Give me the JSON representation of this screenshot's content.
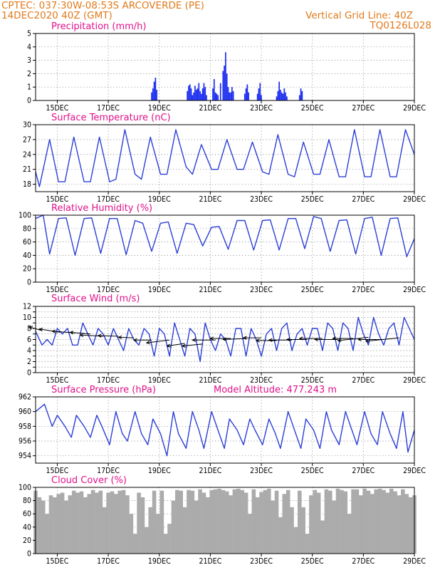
{
  "header": {
    "left_line1": "CPTEC:   037:30W-08:53S   ARCOVERDE (PE)",
    "left_line2": "14DEC2020 40Z (GMT)",
    "right_line1": "Vertical Grid Line: 40Z",
    "right_line2": "TQ0126L028"
  },
  "colors": {
    "series_line": "#2a3fd6",
    "precip_bar": "#1a2cf0",
    "cloud_bar": "#ababab",
    "title_text": "#e0128a",
    "header_text": "#e07a1c",
    "wind_arrow": "#000000"
  },
  "x_axis": {
    "tick_labels": [
      "15DEC",
      "17DEC",
      "19DEC",
      "21DEC",
      "23DEC",
      "25DEC",
      "27DEC",
      "29DEC"
    ],
    "tick_days": [
      15,
      17,
      19,
      21,
      23,
      25,
      27,
      29
    ],
    "day_range": [
      14.15,
      29.0
    ]
  },
  "chart_data": [
    {
      "id": "precip",
      "type": "bar",
      "title": "Precipitation (mm/h)",
      "ylim": [
        0,
        5
      ],
      "yticks": [
        0,
        1,
        2,
        3,
        4,
        5
      ],
      "grid": true,
      "x_days": [
        18.7,
        18.75,
        18.8,
        18.85,
        18.9,
        20.1,
        20.15,
        20.2,
        20.25,
        20.3,
        20.35,
        20.4,
        20.45,
        20.5,
        20.55,
        20.6,
        20.65,
        20.7,
        20.75,
        20.8,
        20.85,
        21.1,
        21.15,
        21.2,
        21.25,
        21.3,
        21.4,
        21.5,
        21.55,
        21.6,
        21.65,
        21.7,
        21.75,
        21.8,
        21.85,
        21.9,
        22.35,
        22.4,
        22.45,
        22.5,
        22.85,
        22.9,
        22.95,
        23.0,
        23.6,
        23.65,
        23.7,
        23.75,
        23.8,
        23.85,
        23.9,
        23.95,
        24.0,
        24.5,
        24.55,
        24.6
      ],
      "values": [
        0.6,
        0.9,
        1.4,
        1.7,
        0.8,
        0.7,
        1.1,
        1.2,
        0.9,
        0.4,
        0.6,
        1.1,
        0.8,
        0.9,
        1.3,
        0.7,
        0.5,
        0.9,
        1.3,
        1.0,
        0.4,
        0.9,
        1.6,
        0.6,
        0.5,
        0.4,
        1.3,
        2.2,
        2.6,
        3.6,
        2.0,
        1.0,
        0.6,
        0.6,
        1.0,
        0.7,
        0.5,
        0.9,
        1.2,
        0.6,
        0.5,
        0.9,
        1.3,
        0.4,
        0.3,
        0.7,
        1.4,
        0.8,
        0.6,
        0.5,
        0.9,
        0.6,
        0.3,
        0.4,
        0.9,
        0.7
      ]
    },
    {
      "id": "temperature",
      "type": "line",
      "title": "Surface Temperature (nC)",
      "ylim": [
        16.5,
        30
      ],
      "yticks": [
        18,
        21,
        24,
        27,
        30
      ],
      "grid": true,
      "x_days": [
        14.15,
        14.3,
        14.7,
        15.05,
        15.3,
        15.65,
        16.05,
        16.3,
        16.65,
        17.05,
        17.3,
        17.65,
        18.05,
        18.3,
        18.65,
        19.05,
        19.3,
        19.65,
        20.05,
        20.3,
        20.65,
        21.05,
        21.3,
        21.65,
        22.05,
        22.3,
        22.65,
        23.05,
        23.3,
        23.65,
        24.05,
        24.3,
        24.65,
        25.05,
        25.3,
        25.65,
        26.05,
        26.3,
        26.65,
        27.05,
        27.3,
        27.65,
        28.05,
        28.3,
        28.65,
        29.0
      ],
      "values": [
        20.5,
        17.5,
        27,
        18.5,
        18.5,
        27.5,
        18.5,
        18.5,
        27.5,
        18.5,
        19,
        29,
        20,
        19,
        27.5,
        20,
        20,
        29,
        21.5,
        20,
        26,
        21,
        21,
        27,
        21,
        21,
        26.5,
        20.5,
        20,
        28,
        20,
        19.5,
        26.5,
        20,
        20,
        27,
        19.5,
        19.5,
        29,
        19.5,
        19.5,
        29,
        19.5,
        19.5,
        29,
        24
      ]
    },
    {
      "id": "humidity",
      "type": "line",
      "title": "Relative Humidity (%)",
      "ylim": [
        0,
        100
      ],
      "yticks": [
        0,
        20,
        40,
        60,
        80,
        100
      ],
      "grid": true,
      "x_days": [
        14.15,
        14.45,
        14.7,
        15.05,
        15.35,
        15.7,
        16.05,
        16.35,
        16.7,
        17.05,
        17.35,
        17.7,
        18.05,
        18.35,
        18.7,
        19.05,
        19.35,
        19.7,
        20.05,
        20.35,
        20.7,
        21.05,
        21.35,
        21.7,
        22.05,
        22.35,
        22.7,
        23.05,
        23.35,
        23.7,
        24.05,
        24.35,
        24.7,
        25.05,
        25.35,
        25.7,
        26.05,
        26.35,
        26.7,
        27.05,
        27.35,
        27.7,
        28.05,
        28.35,
        28.7,
        29.0
      ],
      "values": [
        95,
        100,
        42,
        95,
        96,
        40,
        95,
        96,
        43,
        95,
        95,
        41,
        92,
        88,
        46,
        88,
        90,
        43,
        88,
        86,
        54,
        82,
        83,
        49,
        92,
        92,
        48,
        92,
        93,
        48,
        95,
        95,
        50,
        98,
        95,
        46,
        92,
        93,
        42,
        95,
        97,
        40,
        95,
        96,
        38,
        65
      ]
    },
    {
      "id": "wind",
      "type": "line",
      "title": "Surface Wind (m/s)",
      "ylim": [
        0,
        12
      ],
      "yticks": [
        0,
        1,
        2,
        3,
        4,
        5,
        6,
        7,
        8,
        9,
        10,
        11,
        12
      ],
      "ytick_labels": [
        0,
        2,
        4,
        6,
        8,
        10,
        12
      ],
      "grid": true,
      "x_days": [
        14.15,
        14.4,
        14.6,
        14.8,
        15.0,
        15.2,
        15.4,
        15.6,
        15.8,
        16.0,
        16.2,
        16.4,
        16.6,
        16.8,
        17.0,
        17.2,
        17.4,
        17.6,
        17.8,
        18.0,
        18.2,
        18.4,
        18.6,
        18.8,
        19.0,
        19.2,
        19.4,
        19.6,
        19.8,
        20.0,
        20.2,
        20.4,
        20.6,
        20.8,
        21.0,
        21.2,
        21.4,
        21.6,
        21.8,
        22.0,
        22.2,
        22.4,
        22.6,
        22.8,
        23.0,
        23.2,
        23.4,
        23.6,
        23.8,
        24.0,
        24.2,
        24.4,
        24.6,
        24.8,
        25.0,
        25.2,
        25.4,
        25.6,
        25.8,
        26.0,
        26.2,
        26.4,
        26.6,
        26.8,
        27.0,
        27.2,
        27.4,
        27.6,
        27.8,
        28.0,
        28.2,
        28.4,
        28.6,
        28.8,
        29.0
      ],
      "values": [
        7.5,
        5,
        6,
        5,
        8,
        7,
        8,
        5,
        5,
        9,
        7,
        5,
        8,
        7,
        5,
        8,
        6,
        4,
        8,
        6,
        5,
        8,
        7,
        3,
        8,
        7,
        3,
        9,
        6,
        3,
        8,
        7,
        2,
        9,
        6,
        4,
        7,
        6,
        3,
        8,
        8,
        3,
        8,
        6,
        3,
        7,
        8,
        4,
        8,
        9,
        4,
        7,
        8,
        5,
        8,
        8,
        4,
        9,
        8,
        4,
        9,
        8,
        4,
        10,
        7,
        5,
        10,
        7,
        5,
        8,
        9,
        5,
        10,
        8,
        6
      ],
      "arrows": [
        {
          "x": 14.4,
          "y": 7.6,
          "dx": -0.5,
          "dy": 0.7
        },
        {
          "x": 15.1,
          "y": 7.3,
          "dx": -0.8,
          "dy": 0.6
        },
        {
          "x": 15.7,
          "y": 7.2,
          "dx": -0.9,
          "dy": 0.3
        },
        {
          "x": 16.3,
          "y": 7.0,
          "dx": -0.8,
          "dy": 0.3
        },
        {
          "x": 16.8,
          "y": 6.6,
          "dx": -0.9,
          "dy": 0.2
        },
        {
          "x": 17.4,
          "y": 6.6,
          "dx": -0.8,
          "dy": 0.1
        },
        {
          "x": 18.0,
          "y": 6.3,
          "dx": -0.6,
          "dy": 0.1
        },
        {
          "x": 18.7,
          "y": 5.9,
          "dx": -0.7,
          "dy": 0.0
        },
        {
          "x": 19.4,
          "y": 5.9,
          "dx": -0.9,
          "dy": -0.5
        },
        {
          "x": 20.0,
          "y": 5.3,
          "dx": -0.7,
          "dy": -0.5
        },
        {
          "x": 20.7,
          "y": 5.2,
          "dx": -0.8,
          "dy": -0.4
        },
        {
          "x": 21.2,
          "y": 5.9,
          "dx": -0.9,
          "dy": 0.0
        },
        {
          "x": 21.8,
          "y": 6.2,
          "dx": -0.8,
          "dy": 0.0
        },
        {
          "x": 22.4,
          "y": 6.2,
          "dx": -0.9,
          "dy": -0.2
        },
        {
          "x": 23.0,
          "y": 6.3,
          "dx": -0.7,
          "dy": 0.0
        },
        {
          "x": 23.6,
          "y": 5.8,
          "dx": -0.8,
          "dy": 0.0
        },
        {
          "x": 24.2,
          "y": 5.9,
          "dx": -0.9,
          "dy": 0.0
        },
        {
          "x": 24.8,
          "y": 6.0,
          "dx": -0.8,
          "dy": 0.0
        },
        {
          "x": 25.4,
          "y": 6.2,
          "dx": -0.9,
          "dy": 0.0
        },
        {
          "x": 26.0,
          "y": 6.0,
          "dx": -0.9,
          "dy": 0.0
        },
        {
          "x": 26.6,
          "y": 6.2,
          "dx": -0.8,
          "dy": 0.0
        },
        {
          "x": 27.2,
          "y": 6.4,
          "dx": -1.2,
          "dy": -0.6
        },
        {
          "x": 27.8,
          "y": 6.0,
          "dx": -1.0,
          "dy": 0.0
        },
        {
          "x": 28.4,
          "y": 6.3,
          "dx": -1.3,
          "dy": -0.6
        }
      ]
    },
    {
      "id": "pressure",
      "type": "line",
      "title": "Surface Pressure (hPa)",
      "annotation": "Model Altitude: 477.243 m",
      "ylim": [
        953,
        962
      ],
      "yticks": [
        954,
        956,
        958,
        960,
        962
      ],
      "grid": true,
      "x_days": [
        14.15,
        14.5,
        14.8,
        15.0,
        15.3,
        15.55,
        15.75,
        16.05,
        16.3,
        16.55,
        16.75,
        17.05,
        17.3,
        17.55,
        17.75,
        18.05,
        18.3,
        18.55,
        18.75,
        19.05,
        19.3,
        19.55,
        19.75,
        20.05,
        20.3,
        20.55,
        20.75,
        21.05,
        21.3,
        21.55,
        21.75,
        22.05,
        22.3,
        22.55,
        22.75,
        23.05,
        23.3,
        23.55,
        23.75,
        24.05,
        24.3,
        24.55,
        24.75,
        25.05,
        25.3,
        25.55,
        25.75,
        26.05,
        26.3,
        26.55,
        26.75,
        27.05,
        27.3,
        27.55,
        27.75,
        28.05,
        28.3,
        28.55,
        28.75,
        29.0
      ],
      "values": [
        960,
        961,
        958,
        959.5,
        958,
        956.5,
        959.5,
        958,
        956.5,
        959.5,
        958,
        955.5,
        960,
        957,
        956,
        960,
        957,
        955.5,
        959,
        957,
        954,
        960,
        957,
        955,
        960,
        957.5,
        955,
        960,
        957.5,
        955,
        959,
        957.5,
        955.5,
        959,
        957.5,
        955.5,
        959,
        957,
        955,
        960,
        957.5,
        955,
        959,
        957.5,
        955,
        960,
        957.5,
        955.5,
        960,
        957.5,
        955.5,
        960,
        957,
        955.5,
        960,
        957,
        955,
        960,
        954.5,
        957.5
      ]
    },
    {
      "id": "cloud",
      "type": "bar",
      "title": "Cloud Cover (%)",
      "ylim": [
        0,
        100
      ],
      "yticks": [
        0,
        20,
        40,
        60,
        80,
        100
      ],
      "grid": true,
      "x_days": [
        14.15,
        14.3,
        14.45,
        14.6,
        14.75,
        14.9,
        15.05,
        15.2,
        15.35,
        15.5,
        15.65,
        15.8,
        15.95,
        16.1,
        16.25,
        16.4,
        16.55,
        16.7,
        16.85,
        17.0,
        17.15,
        17.3,
        17.45,
        17.6,
        17.75,
        17.9,
        18.05,
        18.2,
        18.35,
        18.5,
        18.65,
        18.8,
        18.95,
        19.1,
        19.25,
        19.4,
        19.55,
        19.7,
        19.85,
        20.0,
        20.15,
        20.3,
        20.45,
        20.6,
        20.75,
        20.9,
        21.05,
        21.2,
        21.35,
        21.5,
        21.65,
        21.8,
        21.95,
        22.1,
        22.25,
        22.4,
        22.55,
        22.7,
        22.85,
        23.0,
        23.15,
        23.3,
        23.45,
        23.6,
        23.75,
        23.9,
        24.05,
        24.2,
        24.35,
        24.5,
        24.65,
        24.8,
        24.95,
        25.1,
        25.25,
        25.4,
        25.55,
        25.7,
        25.85,
        26.0,
        26.15,
        26.3,
        26.45,
        26.6,
        26.75,
        26.9,
        27.05,
        27.2,
        27.35,
        27.5,
        27.65,
        27.8,
        27.95,
        28.1,
        28.25,
        28.4,
        28.55,
        28.7,
        28.85,
        29.0
      ],
      "values": [
        95,
        85,
        80,
        60,
        88,
        85,
        90,
        92,
        80,
        88,
        95,
        92,
        94,
        85,
        90,
        96,
        92,
        95,
        70,
        92,
        94,
        90,
        95,
        96,
        88,
        60,
        30,
        92,
        85,
        40,
        70,
        95,
        60,
        95,
        30,
        45,
        80,
        96,
        95,
        70,
        96,
        95,
        80,
        97,
        92,
        85,
        96,
        97,
        98,
        96,
        94,
        88,
        97,
        98,
        96,
        92,
        60,
        97,
        85,
        93,
        96,
        98,
        80,
        95,
        55,
        90,
        96,
        70,
        40,
        95,
        70,
        30,
        88,
        96,
        92,
        50,
        97,
        95,
        80,
        98,
        96,
        94,
        60,
        97,
        97,
        88,
        98,
        95,
        90,
        97,
        98,
        96,
        92,
        98,
        94,
        88,
        97,
        90,
        85,
        88
      ]
    }
  ]
}
